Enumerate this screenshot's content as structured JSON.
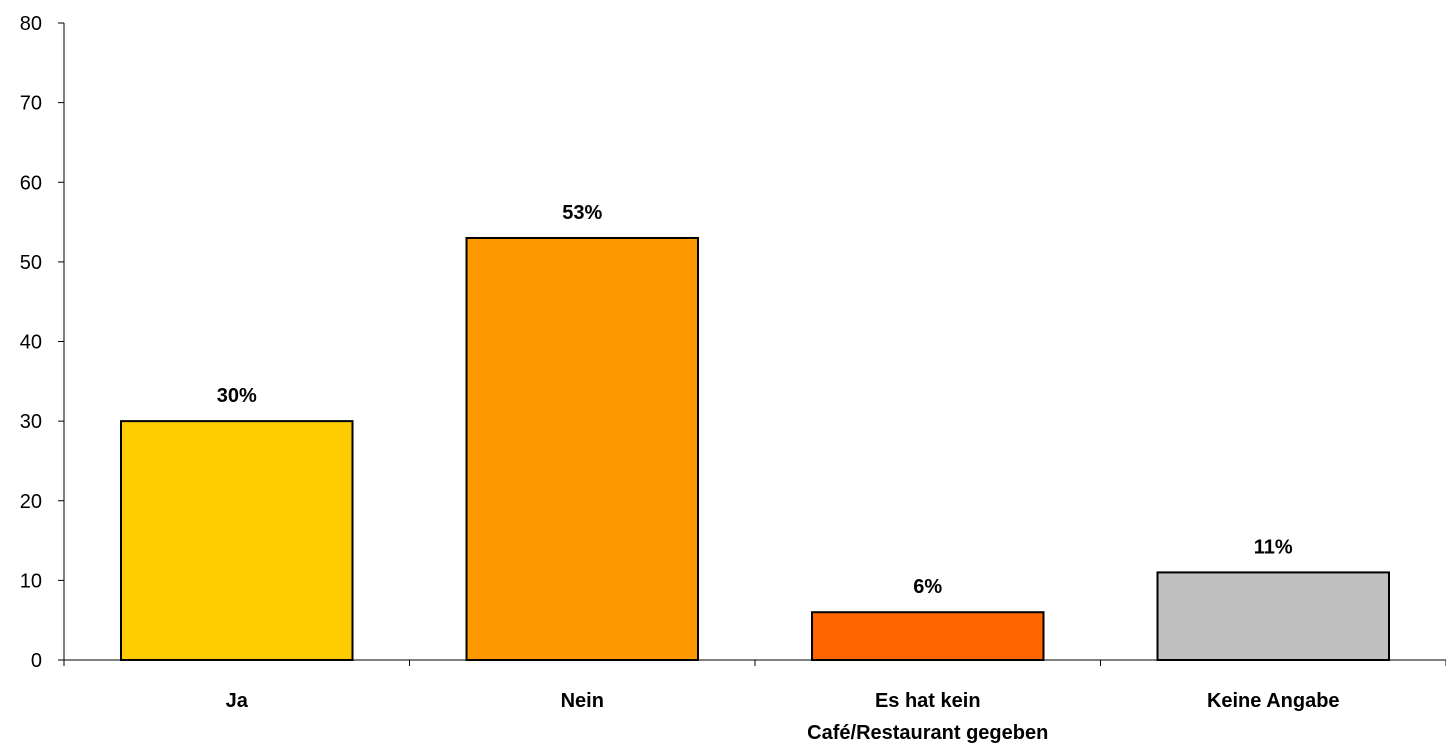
{
  "chart_data": {
    "type": "bar",
    "title": "",
    "xlabel": "",
    "ylabel": "",
    "categories": [
      [
        "Ja"
      ],
      [
        "Nein"
      ],
      [
        "Es hat kein",
        "Café/Restaurant gegeben"
      ],
      [
        "Keine Angabe"
      ]
    ],
    "values": [
      30,
      53,
      6,
      11
    ],
    "data_labels": [
      "30%",
      "53%",
      "6%",
      "11%"
    ],
    "colors": [
      "#FFCC00",
      "#FF9900",
      "#FF6600",
      "#C0C0C0"
    ],
    "ylim": [
      0,
      80
    ],
    "yticks": [
      0,
      10,
      20,
      30,
      40,
      50,
      60,
      70,
      80
    ],
    "grid": false,
    "legend": "none"
  }
}
